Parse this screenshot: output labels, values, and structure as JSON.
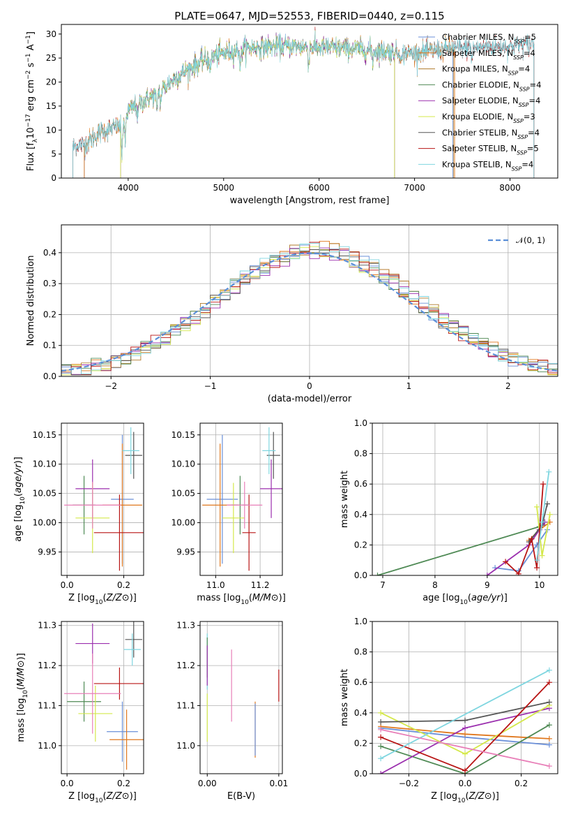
{
  "colors": {
    "chabrier_miles": "#6a8fd8",
    "salpeter_miles": "#e0781e",
    "kroupa_miles": "#b07a2a",
    "chabrier_elodie": "#4f8a55",
    "salpeter_elodie": "#9b2fae",
    "kroupa_elodie": "#d4e84a",
    "chabrier_stelib": "#555555",
    "salpeter_stelib": "#b81414",
    "kroupa_stelib": "#7fd6e0",
    "pink": "#e87fb8",
    "gauss": "#5b8fd8"
  },
  "chart_data": [
    {
      "id": "spectrum",
      "type": "line",
      "title": "PLATE=0647, MJD=52553, FIBERID=0440, z=0.115",
      "xlabel": "wavelength [Angstrom, rest frame]",
      "ylabel": "Flux [fλ10⁻¹⁷ erg cm⁻² s⁻¹ A⁻¹]",
      "xlim": [
        3300,
        8500
      ],
      "ylim": [
        0,
        32
      ],
      "xticks": [
        4000,
        5000,
        6000,
        7000,
        8000
      ],
      "yticks": [
        0,
        5,
        10,
        15,
        20,
        25,
        30
      ],
      "legend_position": "top-right",
      "legend": [
        {
          "label": "Chabrier MILES, N",
          "sub": "SSP",
          "suffix": "=5",
          "color_key": "chabrier_miles"
        },
        {
          "label": "Salpeter MILES, N",
          "sub": "SSP",
          "suffix": "=4",
          "color_key": "salpeter_miles"
        },
        {
          "label": "Kroupa MILES, N",
          "sub": "SSP",
          "suffix": "=4",
          "color_key": "kroupa_miles"
        },
        {
          "label": "Chabrier ELODIE, N",
          "sub": "SSP",
          "suffix": "=4",
          "color_key": "chabrier_elodie"
        },
        {
          "label": "Salpeter ELODIE, N",
          "sub": "SSP",
          "suffix": "=4",
          "color_key": "salpeter_elodie"
        },
        {
          "label": "Kroupa ELODIE, N",
          "sub": "SSP",
          "suffix": "=3",
          "color_key": "kroupa_elodie"
        },
        {
          "label": "Chabrier STELIB, N",
          "sub": "SSP",
          "suffix": "=4",
          "color_key": "chabrier_stelib"
        },
        {
          "label": "Salpeter STELIB, N",
          "sub": "SSP",
          "suffix": "=5",
          "color_key": "salpeter_stelib"
        },
        {
          "label": "Kroupa STELIB, N",
          "sub": "SSP",
          "suffix": "=4",
          "color_key": "kroupa_stelib"
        }
      ],
      "continuum": [
        [
          3420,
          6.5
        ],
        [
          3550,
          7.2
        ],
        [
          3700,
          9.5
        ],
        [
          3850,
          10.5
        ],
        [
          3950,
          11.0
        ],
        [
          4000,
          14.0
        ],
        [
          4150,
          16.0
        ],
        [
          4300,
          17.5
        ],
        [
          4500,
          21.0
        ],
        [
          4700,
          23.5
        ],
        [
          4900,
          25.5
        ],
        [
          5100,
          26.5
        ],
        [
          5300,
          27.2
        ],
        [
          5600,
          27.5
        ],
        [
          6000,
          27.2
        ],
        [
          6300,
          27.0
        ],
        [
          6600,
          26.5
        ],
        [
          7000,
          26.0
        ],
        [
          7400,
          27.0
        ],
        [
          7700,
          27.3
        ],
        [
          8000,
          27.5
        ],
        [
          8250,
          28.0
        ]
      ],
      "model_coverage": [
        {
          "color_key": "chabrier_miles",
          "x": [
            3540,
            7400
          ]
        },
        {
          "color_key": "salpeter_miles",
          "x": [
            3540,
            7420
          ]
        },
        {
          "color_key": "kroupa_miles",
          "x": [
            3540,
            7410
          ]
        },
        {
          "color_key": "chabrier_elodie",
          "x": [
            3920,
            6790
          ]
        },
        {
          "color_key": "salpeter_elodie",
          "x": [
            3920,
            6790
          ]
        },
        {
          "color_key": "kroupa_elodie",
          "x": [
            3920,
            6790
          ]
        },
        {
          "color_key": "chabrier_stelib",
          "x": [
            3420,
            8250
          ]
        },
        {
          "color_key": "salpeter_stelib",
          "x": [
            3420,
            8250
          ]
        },
        {
          "color_key": "kroupa_stelib",
          "x": [
            3420,
            8250
          ]
        }
      ]
    },
    {
      "id": "residuals",
      "type": "line",
      "xlabel": "(data-model)/error",
      "ylabel": "Normed distribution",
      "xlim": [
        -2.5,
        2.5
      ],
      "ylim": [
        0,
        0.49
      ],
      "xticks": [
        -2,
        -1,
        0,
        1,
        2
      ],
      "yticks": [
        0.0,
        0.1,
        0.2,
        0.3,
        0.4
      ],
      "grid": true,
      "legend_position": "top-right",
      "legend": [
        {
          "label": "𝒩(0, 1)",
          "color_key": "gauss",
          "style": "dashed"
        }
      ],
      "bins": {
        "start": -2.5,
        "width": 0.1,
        "count": 50
      }
    },
    {
      "id": "age_vs_Z",
      "type": "scatter",
      "xlabel": "Z [log10(Z/Z⊙)]",
      "ylabel": "age  [log10(age/yr)]",
      "xlim": [
        -0.02,
        0.27
      ],
      "ylim": [
        9.91,
        10.17
      ],
      "xticks": [
        0.0,
        0.2
      ],
      "yticks": [
        9.95,
        10.0,
        10.05,
        10.1,
        10.15
      ],
      "grid": true,
      "points": [
        {
          "x": 0.195,
          "xerr": 0.04,
          "y": 10.04,
          "yerr": 0.11,
          "color_key": "chabrier_miles"
        },
        {
          "x": 0.195,
          "xerr": 0.07,
          "y": 10.03,
          "yerr": 0.105,
          "color_key": "salpeter_miles"
        },
        {
          "x": 0.06,
          "xerr": 0.04,
          "y": 10.03,
          "yerr": 0.05,
          "color_key": "chabrier_elodie"
        },
        {
          "x": 0.09,
          "xerr": 0.06,
          "y": 10.058,
          "yerr": 0.05,
          "color_key": "salpeter_elodie"
        },
        {
          "x": 0.09,
          "xerr": 0.06,
          "y": 10.008,
          "yerr": 0.06,
          "color_key": "kroupa_elodie"
        },
        {
          "x": 0.235,
          "xerr": 0.03,
          "y": 10.115,
          "yerr": 0.04,
          "color_key": "chabrier_stelib"
        },
        {
          "x": 0.185,
          "xerr": 0.09,
          "y": 9.983,
          "yerr": 0.065,
          "color_key": "salpeter_stelib"
        },
        {
          "x": 0.225,
          "xerr": 0.03,
          "y": 10.123,
          "yerr": 0.04,
          "color_key": "kroupa_stelib"
        },
        {
          "x": 0.09,
          "xerr": 0.1,
          "y": 10.03,
          "yerr": 0.04,
          "color_key": "pink"
        }
      ]
    },
    {
      "id": "age_vs_mass",
      "type": "scatter",
      "xlabel": "mass [log10(M/M⊙)]",
      "xlim": [
        10.93,
        11.3
      ],
      "ylim": [
        9.91,
        10.17
      ],
      "xticks": [
        11.0,
        11.2
      ],
      "yticks": [
        9.95,
        10.0,
        10.05,
        10.1,
        10.15
      ],
      "grid": true,
      "points": [
        {
          "x": 11.03,
          "xerr": 0.07,
          "y": 10.04,
          "yerr": 0.11,
          "color_key": "chabrier_miles"
        },
        {
          "x": 11.02,
          "xerr": 0.08,
          "y": 10.03,
          "yerr": 0.105,
          "color_key": "salpeter_miles"
        },
        {
          "x": 11.11,
          "xerr": 0.04,
          "y": 10.03,
          "yerr": 0.05,
          "color_key": "chabrier_elodie"
        },
        {
          "x": 11.25,
          "xerr": 0.05,
          "y": 10.058,
          "yerr": 0.05,
          "color_key": "salpeter_elodie"
        },
        {
          "x": 11.08,
          "xerr": 0.05,
          "y": 10.008,
          "yerr": 0.06,
          "color_key": "kroupa_elodie"
        },
        {
          "x": 11.26,
          "xerr": 0.03,
          "y": 10.115,
          "yerr": 0.04,
          "color_key": "chabrier_stelib"
        },
        {
          "x": 11.15,
          "xerr": 0.03,
          "y": 9.983,
          "yerr": 0.065,
          "color_key": "salpeter_stelib"
        },
        {
          "x": 11.24,
          "xerr": 0.03,
          "y": 10.123,
          "yerr": 0.04,
          "color_key": "kroupa_stelib"
        },
        {
          "x": 11.13,
          "xerr": 0.08,
          "y": 10.03,
          "yerr": 0.04,
          "color_key": "pink"
        }
      ]
    },
    {
      "id": "weight_vs_age",
      "type": "line",
      "xlabel": "age  [log10(age/yr)]",
      "ylabel": "mass weight",
      "xlim": [
        6.8,
        10.35
      ],
      "ylim": [
        0.0,
        1.0
      ],
      "xticks": [
        7,
        8,
        9,
        10
      ],
      "yticks": [
        0.0,
        0.2,
        0.4,
        0.6,
        0.8,
        1.0
      ],
      "grid": true,
      "series": [
        {
          "color_key": "chabrier_elodie",
          "x": [
            6.9,
            10.0,
            10.1
          ],
          "y": [
            0.0,
            0.32,
            0.35
          ]
        },
        {
          "color_key": "chabrier_miles",
          "x": [
            9.15,
            9.6,
            9.95,
            10.15
          ],
          "y": [
            0.05,
            0.03,
            0.2,
            0.3
          ]
        },
        {
          "color_key": "salpeter_miles",
          "x": [
            9.8,
            10.0,
            10.2
          ],
          "y": [
            0.23,
            0.3,
            0.35
          ]
        },
        {
          "color_key": "salpeter_elodie",
          "x": [
            9.0,
            9.8,
            10.0,
            10.1
          ],
          "y": [
            0.0,
            0.2,
            0.3,
            0.35
          ]
        },
        {
          "color_key": "kroupa_elodie",
          "x": [
            9.95,
            10.05,
            10.2
          ],
          "y": [
            0.45,
            0.13,
            0.4
          ]
        },
        {
          "color_key": "chabrier_stelib",
          "x": [
            9.8,
            10.05,
            10.15
          ],
          "y": [
            0.22,
            0.33,
            0.47
          ]
        },
        {
          "color_key": "salpeter_stelib",
          "x": [
            9.35,
            9.6,
            9.85,
            9.95,
            10.07
          ],
          "y": [
            0.09,
            0.01,
            0.24,
            0.05,
            0.6
          ]
        },
        {
          "color_key": "kroupa_stelib",
          "x": [
            9.95,
            10.05,
            10.18
          ],
          "y": [
            0.1,
            0.35,
            0.68
          ]
        }
      ]
    },
    {
      "id": "mass_vs_Z",
      "type": "scatter",
      "xlabel": "Z [log10(Z/Z⊙)]",
      "ylabel": "mass [log10(M/M⊙)]",
      "xlim": [
        -0.02,
        0.27
      ],
      "ylim": [
        10.93,
        11.31
      ],
      "xticks": [
        0.0,
        0.2
      ],
      "yticks": [
        11.0,
        11.1,
        11.2,
        11.3
      ],
      "grid": true,
      "points": [
        {
          "x": 0.195,
          "xerr": 0.055,
          "y": 11.035,
          "yerr": 0.075,
          "color_key": "chabrier_miles"
        },
        {
          "x": 0.21,
          "xerr": 0.06,
          "y": 11.015,
          "yerr": 0.075,
          "color_key": "salpeter_miles"
        },
        {
          "x": 0.06,
          "xerr": 0.06,
          "y": 11.11,
          "yerr": 0.05,
          "color_key": "chabrier_elodie"
        },
        {
          "x": 0.09,
          "xerr": 0.06,
          "y": 11.255,
          "yerr": 0.05,
          "color_key": "salpeter_elodie"
        },
        {
          "x": 0.1,
          "xerr": 0.06,
          "y": 11.08,
          "yerr": 0.07,
          "color_key": "kroupa_elodie"
        },
        {
          "x": 0.235,
          "xerr": 0.03,
          "y": 11.265,
          "yerr": 0.045,
          "color_key": "chabrier_stelib"
        },
        {
          "x": 0.185,
          "xerr": 0.09,
          "y": 11.155,
          "yerr": 0.04,
          "color_key": "salpeter_stelib"
        },
        {
          "x": 0.23,
          "xerr": 0.03,
          "y": 11.24,
          "yerr": 0.04,
          "color_key": "kroupa_stelib"
        },
        {
          "x": 0.09,
          "xerr": 0.1,
          "y": 11.13,
          "yerr": 0.1,
          "color_key": "pink"
        }
      ]
    },
    {
      "id": "mass_vs_ebv",
      "type": "scatter",
      "xlabel": "E(B-V)",
      "xlim": [
        -0.001,
        0.0105
      ],
      "ylim": [
        10.93,
        11.31
      ],
      "xticks": [
        0.0,
        0.01
      ],
      "yticks": [
        11.0,
        11.1,
        11.2,
        11.3
      ],
      "grid": true,
      "points": [
        {
          "x": 0.0,
          "y": 11.21,
          "yerr": 0.07,
          "color_key": "kroupa_stelib"
        },
        {
          "x": 0.0,
          "y": 11.22,
          "yerr": 0.05,
          "color_key": "chabrier_elodie"
        },
        {
          "x": 0.0,
          "y": 11.2,
          "yerr": 0.05,
          "color_key": "salpeter_elodie"
        },
        {
          "x": 0.0,
          "y": 11.07,
          "yerr": 0.06,
          "color_key": "kroupa_elodie"
        },
        {
          "x": 0.0034,
          "y": 11.15,
          "yerr": 0.09,
          "color_key": "pink"
        },
        {
          "x": 0.0067,
          "y": 11.04,
          "yerr": 0.07,
          "color_key": "salpeter_miles"
        },
        {
          "x": 0.0067,
          "y": 11.04,
          "yerr": 0.065,
          "color_key": "chabrier_miles"
        },
        {
          "x": 0.01,
          "y": 11.15,
          "yerr": 0.04,
          "color_key": "salpeter_stelib"
        }
      ]
    },
    {
      "id": "weight_vs_Z",
      "type": "line",
      "xlabel": "Z [log10(Z/Z⊙)]",
      "ylabel": "mass weight",
      "xlim": [
        -0.33,
        0.33
      ],
      "ylim": [
        0.0,
        1.0
      ],
      "xticks": [
        -0.2,
        0.0,
        0.2
      ],
      "yticks": [
        0.0,
        0.2,
        0.4,
        0.6,
        0.8,
        1.0
      ],
      "grid": true,
      "series": [
        {
          "color_key": "chabrier_miles",
          "x": [
            -0.3,
            0.0,
            0.3
          ],
          "y": [
            0.3,
            0.24,
            0.19
          ]
        },
        {
          "color_key": "salpeter_miles",
          "x": [
            -0.3,
            0.0,
            0.3
          ],
          "y": [
            0.31,
            0.26,
            0.23
          ]
        },
        {
          "color_key": "chabrier_elodie",
          "x": [
            -0.3,
            0.0,
            0.3
          ],
          "y": [
            0.18,
            0.0,
            0.32
          ]
        },
        {
          "color_key": "salpeter_elodie",
          "x": [
            -0.3,
            0.0,
            0.3
          ],
          "y": [
            0.0,
            0.3,
            0.43
          ]
        },
        {
          "color_key": "kroupa_elodie",
          "x": [
            -0.3,
            0.0,
            0.3
          ],
          "y": [
            0.4,
            0.13,
            0.45
          ]
        },
        {
          "color_key": "chabrier_stelib",
          "x": [
            -0.3,
            0.0,
            0.3
          ],
          "y": [
            0.34,
            0.35,
            0.47
          ]
        },
        {
          "color_key": "salpeter_stelib",
          "x": [
            -0.3,
            0.0,
            0.3
          ],
          "y": [
            0.24,
            0.02,
            0.6
          ]
        },
        {
          "color_key": "kroupa_stelib",
          "x": [
            -0.3,
            0.3
          ],
          "y": [
            0.1,
            0.68
          ]
        },
        {
          "color_key": "pink",
          "x": [
            -0.3,
            0.3
          ],
          "y": [
            0.29,
            0.05
          ]
        }
      ]
    }
  ]
}
